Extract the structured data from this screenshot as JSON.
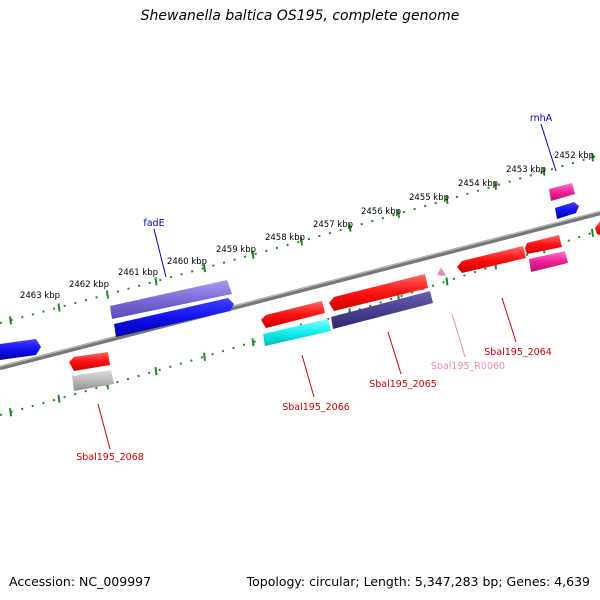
{
  "header": {
    "title": "Shewanella baltica OS195, complete genome"
  },
  "footer": {
    "accession": "Accession: NC_009997",
    "summary": "Topology: circular; Length: 5,347,283 bp; Genes: 4,639"
  },
  "ruler": {
    "ticks": [
      "2452 kbp",
      "2453 kbp",
      "2454 kbp",
      "2455 kbp",
      "2456 kbp",
      "2457 kbp",
      "2458 kbp",
      "2459 kbp",
      "2460 kbp",
      "2461 kbp",
      "2462 kbp",
      "2463 kbp"
    ],
    "color": "#228822"
  },
  "genes": [
    {
      "name": "rnhA",
      "color": "#0000cc"
    },
    {
      "name": "fadE",
      "color": "#0000cc"
    },
    {
      "name": "Sbal195_2064",
      "color": "#cc0000"
    },
    {
      "name": "Sbal195_R0060",
      "color": "#ee88bb"
    },
    {
      "name": "Sbal195_2065",
      "color": "#cc0000"
    },
    {
      "name": "Sbal195_2066",
      "color": "#cc0000"
    },
    {
      "name": "Sbal195_2068",
      "color": "#cc0000"
    }
  ],
  "colors": {
    "backbone": "#888888",
    "red": "#ff1111",
    "blue": "#1111ee",
    "purple": "#7a6ad8",
    "navy": "#4a4090",
    "cyan": "#11eeee",
    "magenta": "#ee2299",
    "gray": "#b0b0b0",
    "pink": "#ee88bb"
  }
}
